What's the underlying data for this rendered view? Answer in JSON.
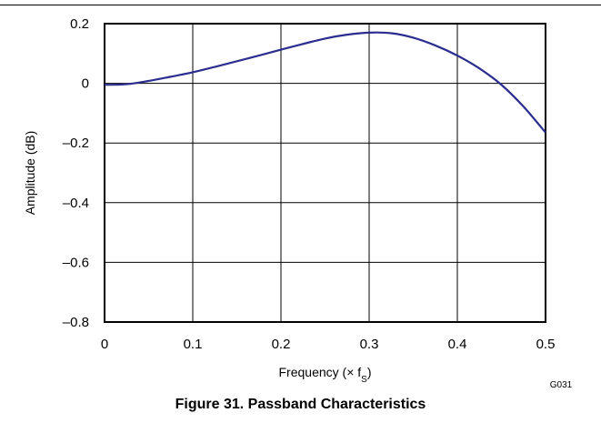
{
  "chart_data": {
    "type": "line",
    "title": "",
    "xlabel": "Frequency (× f",
    "xlabel_sub": "S",
    "xlabel_end": ")",
    "ylabel": "Amplitude (dB)",
    "xlim": [
      0,
      0.5
    ],
    "ylim": [
      -0.8,
      0.2
    ],
    "x_ticks": [
      0,
      0.1,
      0.2,
      0.3,
      0.4,
      0.5
    ],
    "x_tick_labels": [
      "0",
      "0.1",
      "0.2",
      "0.3",
      "0.4",
      "0.5"
    ],
    "y_ticks": [
      0.2,
      0,
      -0.2,
      -0.4,
      -0.6,
      -0.8
    ],
    "y_tick_labels": [
      "0.2",
      "0",
      "–0.2",
      "–0.4",
      "–0.6",
      "–0.8"
    ],
    "grid": true,
    "series": [
      {
        "color": "#2b2d8f",
        "x": [
          0,
          0.025,
          0.05,
          0.075,
          0.1,
          0.125,
          0.15,
          0.175,
          0.2,
          0.225,
          0.25,
          0.275,
          0.3,
          0.325,
          0.35,
          0.375,
          0.4,
          0.425,
          0.45,
          0.475,
          0.5
        ],
        "y": [
          -0.005,
          -0.003,
          0.008,
          0.022,
          0.037,
          0.055,
          0.074,
          0.093,
          0.113,
          0.132,
          0.15,
          0.163,
          0.17,
          0.168,
          0.153,
          0.127,
          0.093,
          0.05,
          -0.005,
          -0.078,
          -0.165
        ]
      }
    ]
  },
  "figure": {
    "code": "G031",
    "caption": "Figure 31. Passband Characteristics"
  }
}
